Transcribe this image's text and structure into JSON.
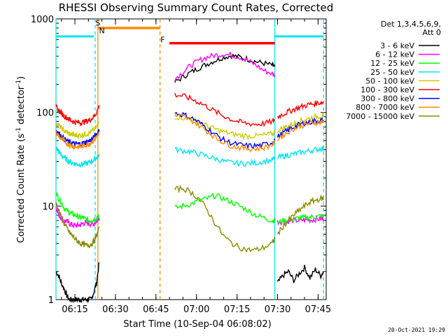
{
  "chart_data": {
    "type": "line",
    "title": "RHESSI Observing Summary Count Rates, Corrected",
    "ylabel_main": "Corrected Count Rate (s",
    "ylabel_sup1": "-1",
    "ylabel_mid": " detector",
    "ylabel_sup2": "-1",
    "ylabel_end": ")",
    "xlabel": "Start Time (10-Sep-04 06:08:02)",
    "yscale": "log",
    "ylim": [
      1,
      1000
    ],
    "xlim_minutes": [
      8,
      108
    ],
    "y_ticks": [
      {
        "value": 1,
        "label": "1"
      },
      {
        "value": 10,
        "label": "10"
      },
      {
        "value": 100,
        "label": "100"
      },
      {
        "value": 1000,
        "label": "1000"
      }
    ],
    "x_ticks": [
      {
        "minute": 15,
        "label": "06:15"
      },
      {
        "minute": 30,
        "label": "06:30"
      },
      {
        "minute": 45,
        "label": "06:45"
      },
      {
        "minute": 60,
        "label": "07:00"
      },
      {
        "minute": 75,
        "label": "07:15"
      },
      {
        "minute": 90,
        "label": "07:30"
      },
      {
        "minute": 105,
        "label": "07:45"
      }
    ],
    "legend": {
      "header1": "Det 1,3,4,5,6,9,",
      "header2": "Att 0",
      "position": "right"
    },
    "series": [
      {
        "name": "3 - 6 keV",
        "color": "#000000",
        "segments": [
          {
            "x": [
              8,
              9,
              10,
              11,
              12,
              13,
              14,
              15,
              16,
              17,
              18,
              19,
              20,
              21,
              22,
              23,
              24
            ],
            "y": [
              2,
              1.8,
              1.5,
              1.3,
              1.1,
              1.0,
              1.0,
              1.0,
              1.0,
              1.0,
              1.0,
              1.0,
              1.0,
              1.0,
              1.2,
              1.5,
              2.5
            ]
          },
          {
            "x": [
              52,
              55,
              58,
              61,
              64,
              67,
              70,
              73,
              76,
              79,
              82,
              85,
              88,
              89
            ],
            "y": [
              210,
              240,
              270,
              300,
              330,
              360,
              390,
              405,
              390,
              370,
              350,
              335,
              320,
              310
            ]
          },
          {
            "x": [
              90,
              92,
              94,
              96,
              98,
              100,
              102,
              104,
              106,
              107
            ],
            "y": [
              1.5,
              1.8,
              2.0,
              1.6,
              1.9,
              2.2,
              1.7,
              2.1,
              1.8,
              2.0
            ]
          }
        ]
      },
      {
        "name": "6 - 12 keV",
        "color": "#ff00ff",
        "segments": [
          {
            "x": [
              8,
              9,
              10,
              11,
              12,
              13,
              14,
              15,
              16,
              17,
              18,
              19,
              20,
              21,
              22,
              23,
              24
            ],
            "y": [
              10,
              8,
              7.5,
              7,
              6.8,
              6.5,
              6.3,
              6.2,
              6.2,
              6.3,
              6.5,
              6.6,
              6.5,
              6.4,
              6.5,
              6.8,
              7.5
            ]
          },
          {
            "x": [
              52,
              55,
              58,
              61,
              64,
              67,
              70,
              73,
              76,
              79,
              82,
              85,
              88,
              89
            ],
            "y": [
              230,
              270,
              320,
              360,
              390,
              410,
              420,
              410,
              390,
              360,
              320,
              280,
              260,
              250
            ]
          },
          {
            "x": [
              90,
              92,
              94,
              96,
              98,
              100,
              102,
              104,
              106,
              107
            ],
            "y": [
              6.8,
              6.8,
              6.9,
              7.0,
              7.0,
              7.1,
              7.1,
              7.2,
              7.3,
              7.3
            ]
          }
        ]
      },
      {
        "name": "12 - 25 keV",
        "color": "#00ff00",
        "segments": [
          {
            "x": [
              8,
              9,
              10,
              11,
              12,
              13,
              14,
              15,
              16,
              17,
              18,
              19,
              20,
              21,
              22,
              23,
              24
            ],
            "y": [
              14,
              12,
              11,
              9.5,
              9,
              8.5,
              8.2,
              8,
              7.8,
              7.5,
              7.5,
              7.2,
              7,
              7,
              7.2,
              7.5,
              8
            ]
          },
          {
            "x": [
              52,
              55,
              58,
              61,
              64,
              67,
              70,
              73,
              76,
              79,
              82,
              85,
              88,
              89
            ],
            "y": [
              9.5,
              10,
              10.5,
              11.5,
              12,
              13,
              12,
              11,
              10,
              9,
              8,
              7.5,
              7,
              7
            ]
          },
          {
            "x": [
              90,
              92,
              94,
              96,
              98,
              100,
              102,
              104,
              106,
              107
            ],
            "y": [
              6.5,
              7,
              7,
              7.2,
              7.5,
              7.5,
              7.6,
              7.7,
              7.8,
              7.8
            ]
          }
        ]
      },
      {
        "name": "25 - 50 keV",
        "color": "#00e5ee",
        "segments": [
          {
            "x": [
              8,
              9,
              10,
              11,
              12,
              13,
              14,
              15,
              16,
              17,
              18,
              19,
              20,
              21,
              22,
              23,
              24
            ],
            "y": [
              42,
              38,
              35,
              33,
              31,
              30,
              29,
              28.5,
              28,
              28,
              28,
              28.5,
              29,
              30,
              31,
              33,
              36
            ]
          },
          {
            "x": [
              52,
              55,
              58,
              61,
              64,
              67,
              70,
              73,
              76,
              79,
              82,
              85,
              88,
              89
            ],
            "y": [
              40,
              39,
              38,
              36,
              34,
              32,
              30,
              29,
              28.5,
              28.5,
              29,
              30,
              31,
              32
            ]
          },
          {
            "x": [
              90,
              92,
              94,
              96,
              98,
              100,
              102,
              104,
              106,
              107
            ],
            "y": [
              33,
              34,
              35,
              36,
              37,
              38,
              39,
              40,
              41,
              41
            ]
          }
        ]
      },
      {
        "name": "50 - 100 keV",
        "color": "#cccc00",
        "segments": [
          {
            "x": [
              8,
              9,
              10,
              11,
              12,
              13,
              14,
              15,
              16,
              17,
              18,
              19,
              20,
              21,
              22,
              23,
              24
            ],
            "y": [
              78,
              72,
              68,
              64,
              61,
              59,
              58,
              57,
              57,
              57,
              58,
              59,
              60,
              62,
              65,
              70,
              80
            ]
          },
          {
            "x": [
              52,
              55,
              58,
              61,
              64,
              67,
              70,
              73,
              76,
              79,
              82,
              85,
              88,
              89
            ],
            "y": [
              90,
              88,
              84,
              78,
              72,
              66,
              62,
              59,
              57,
              56,
              56,
              57,
              59,
              61
            ]
          },
          {
            "x": [
              90,
              92,
              94,
              96,
              98,
              100,
              102,
              104,
              106,
              107
            ],
            "y": [
              64,
              68,
              72,
              76,
              80,
              84,
              87,
              90,
              92,
              93
            ]
          }
        ]
      },
      {
        "name": "100 - 300 keV",
        "color": "#ff0000",
        "segments": [
          {
            "x": [
              8,
              9,
              10,
              11,
              12,
              13,
              14,
              15,
              16,
              17,
              18,
              19,
              20,
              21,
              22,
              23,
              24
            ],
            "y": [
              115,
              105,
              98,
              92,
              88,
              84,
              81,
              79,
              78,
              78,
              79,
              80,
              82,
              85,
              90,
              100,
              120
            ]
          },
          {
            "x": [
              52,
              55,
              58,
              61,
              64,
              67,
              70,
              73,
              76,
              79,
              82,
              85,
              88,
              89
            ],
            "y": [
              155,
              150,
              140,
              128,
              115,
              102,
              92,
              84,
              79,
              76,
              75,
              76,
              80,
              84
            ]
          },
          {
            "x": [
              90,
              92,
              94,
              96,
              98,
              100,
              102,
              104,
              106,
              107
            ],
            "y": [
              90,
              96,
              102,
              108,
              113,
              118,
              122,
              125,
              128,
              129
            ]
          }
        ]
      },
      {
        "name": "300 - 800 keV",
        "color": "#0000ff",
        "segments": [
          {
            "x": [
              8,
              9,
              10,
              11,
              12,
              13,
              14,
              15,
              16,
              17,
              18,
              19,
              20,
              21,
              22,
              23,
              24
            ],
            "y": [
              65,
              60,
              56,
              52,
              50,
              48,
              47,
              46,
              46,
              46,
              47,
              48,
              49,
              51,
              54,
              58,
              66
            ]
          },
          {
            "x": [
              52,
              55,
              58,
              61,
              64,
              67,
              70,
              73,
              76,
              79,
              82,
              85,
              88,
              89
            ],
            "y": [
              98,
              95,
              88,
              78,
              68,
              58,
              51,
              47,
              45,
              44,
              44,
              45,
              48,
              51
            ]
          },
          {
            "x": [
              90,
              92,
              94,
              96,
              98,
              100,
              102,
              104,
              106,
              107
            ],
            "y": [
              55,
              60,
              65,
              70,
              74,
              77,
              79,
              81,
              82,
              82
            ]
          }
        ]
      },
      {
        "name": "800 - 7000 keV",
        "color": "#ff8c00",
        "segments": [
          {
            "x": [
              8,
              9,
              10,
              11,
              12,
              13,
              14,
              15,
              16,
              17,
              18,
              19,
              20,
              21,
              22,
              23,
              24
            ],
            "y": [
              60,
              56,
              52,
              49,
              47,
              45,
              44,
              43,
              43,
              43,
              44,
              45,
              46,
              48,
              51,
              55,
              62
            ]
          },
          {
            "x": [
              52,
              55,
              58,
              61,
              64,
              67,
              70,
              73,
              76,
              79,
              82,
              85,
              88,
              89
            ],
            "y": [
              92,
              90,
              83,
              73,
              63,
              54,
              48,
              44,
              42,
              41,
              41,
              42,
              45,
              48
            ]
          },
          {
            "x": [
              90,
              92,
              94,
              96,
              98,
              100,
              102,
              104,
              106,
              107
            ],
            "y": [
              52,
              57,
              62,
              67,
              71,
              74,
              76,
              78,
              79,
              79
            ]
          }
        ]
      },
      {
        "name": "7000 - 15000 keV",
        "color": "#8b8b00",
        "segments": [
          {
            "x": [
              8,
              9,
              10,
              11,
              12,
              13,
              14,
              15,
              16,
              17,
              18,
              19,
              20,
              21,
              22,
              23,
              24
            ],
            "y": [
              11,
              9,
              7.5,
              6.5,
              5.8,
              5.2,
              4.8,
              4.5,
              4.2,
              4,
              3.9,
              3.8,
              3.8,
              3.9,
              4.2,
              4.8,
              6
            ]
          },
          {
            "x": [
              52,
              55,
              58,
              61,
              64,
              67,
              70,
              73,
              76,
              79,
              82,
              85,
              88,
              89
            ],
            "y": [
              15,
              15.5,
              14,
              12,
              9,
              6.5,
              4.8,
              4.0,
              3.6,
              3.4,
              3.4,
              3.6,
              4.0,
              4.5
            ]
          },
          {
            "x": [
              90,
              92,
              94,
              96,
              98,
              100,
              102,
              104,
              106,
              107
            ],
            "y": [
              5,
              6,
              7,
              8,
              9,
              10,
              11,
              11.5,
              12,
              12
            ]
          }
        ]
      }
    ],
    "annotations": [
      {
        "label": "S",
        "color": "#ff8c00",
        "x1": 23.5,
        "x2": 46.5,
        "y": 800,
        "labelMinute": 23.5,
        "labelY": 850
      },
      {
        "label": "N",
        "color": "#00e5ee",
        "x1": 24.5,
        "x2": 24.5,
        "y": 650,
        "labelMinute": 25,
        "labelY": 700
      },
      {
        "label": "F",
        "color": "#ff0000",
        "x1": 50,
        "x2": 89,
        "y": 550,
        "labelMinute": 47.5,
        "labelY": 560
      }
    ],
    "night_bars": [
      {
        "color": "#00e5ee",
        "x1": 8,
        "x2": 22,
        "y": 650
      },
      {
        "color": "#00e5ee",
        "x1": 89,
        "x2": 107,
        "y": 650
      }
    ],
    "vertical_lines": [
      {
        "minute": 8,
        "color": "#00e5ee",
        "style": "solid"
      },
      {
        "minute": 22.5,
        "color": "#00e5ee",
        "style": "dashed"
      },
      {
        "minute": 23.5,
        "color": "#ff8c00",
        "style": "solid"
      },
      {
        "minute": 46.5,
        "color": "#ff8c00",
        "style": "dashed"
      },
      {
        "minute": 89,
        "color": "#00e5ee",
        "style": "solid"
      },
      {
        "minute": 107,
        "color": "#00e5ee",
        "style": "dashed"
      }
    ],
    "timestamp": "20-Oct-2021 19:29"
  }
}
